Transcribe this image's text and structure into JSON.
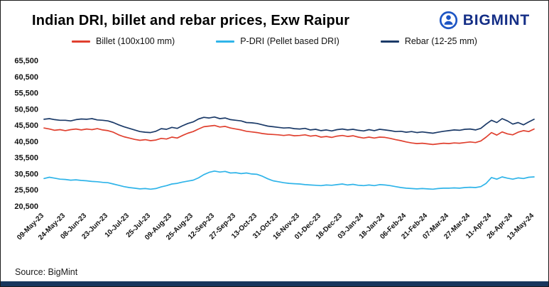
{
  "header": {
    "title": "Indian DRI, billet and rebar prices, Exw Raipur",
    "brand": "BIGMINT"
  },
  "footer": {
    "source": "Source: BigMint"
  },
  "chart_data": {
    "type": "line",
    "title": "Indian DRI, billet and rebar prices, Exw Raipur",
    "xlabel": "",
    "ylabel": "",
    "ylim": [
      20500,
      65500
    ],
    "grid": false,
    "legend_position": "top-center",
    "y_ticks": [
      20500,
      25500,
      30500,
      35500,
      40500,
      45500,
      50500,
      55500,
      60500,
      65500
    ],
    "x_tick_labels": [
      "09-May-23",
      "24-May-23",
      "08-Jun-23",
      "23-Jun-23",
      "10-Jul-23",
      "25-Jul-23",
      "09-Aug-23",
      "25-Aug-23",
      "12-Sep-23",
      "27-Sep-23",
      "13-Oct-23",
      "31-Oct-23",
      "16-Nov-23",
      "01-Dec-23",
      "18-Dec-23",
      "03-Jan-24",
      "18-Jan-24",
      "06-Feb-24",
      "21-Feb-24",
      "07-Mar-24",
      "27-Mar-24",
      "11-Apr-24",
      "26-Apr-24",
      "13-May-24"
    ],
    "points_per_label": 4,
    "series": [
      {
        "id": "billet",
        "name": "Billet (100x100 mm)",
        "color": "#e0402f",
        "values": [
          44600,
          44300,
          43900,
          44100,
          43800,
          44100,
          44300,
          44000,
          44300,
          44100,
          44400,
          44000,
          43800,
          43300,
          42500,
          41900,
          41500,
          41100,
          40800,
          41000,
          40700,
          40900,
          41400,
          41200,
          41800,
          41500,
          42300,
          43000,
          43500,
          44300,
          45000,
          45200,
          45400,
          44900,
          45100,
          44600,
          44300,
          44000,
          43600,
          43400,
          43200,
          42900,
          42700,
          42600,
          42500,
          42300,
          42500,
          42200,
          42300,
          42500,
          42100,
          42300,
          41800,
          42000,
          41700,
          42100,
          42300,
          42000,
          42200,
          41800,
          41500,
          41800,
          41500,
          41800,
          41700,
          41400,
          41000,
          40700,
          40300,
          40000,
          39800,
          39900,
          39700,
          39500,
          39700,
          39900,
          39800,
          40000,
          39900,
          40100,
          40300,
          40100,
          40600,
          41800,
          43200,
          42400,
          43400,
          42800,
          42500,
          43300,
          43800,
          43500,
          44300
        ]
      },
      {
        "id": "pdri",
        "name": "P-DRI (Pellet based DRI)",
        "color": "#2fb4e9",
        "values": [
          29000,
          29400,
          29100,
          28800,
          28700,
          28500,
          28600,
          28400,
          28300,
          28100,
          28000,
          27800,
          27700,
          27300,
          26900,
          26500,
          26200,
          26000,
          25800,
          25900,
          25700,
          25900,
          26400,
          26800,
          27300,
          27500,
          27900,
          28200,
          28500,
          29200,
          30200,
          30900,
          31300,
          31000,
          31200,
          30700,
          30800,
          30500,
          30700,
          30400,
          30300,
          29700,
          28900,
          28300,
          28000,
          27700,
          27500,
          27400,
          27300,
          27100,
          27000,
          26900,
          26800,
          27000,
          26900,
          27100,
          27300,
          27000,
          27200,
          26900,
          26800,
          27000,
          26800,
          27100,
          27000,
          26800,
          26500,
          26200,
          26000,
          25900,
          25800,
          25900,
          25800,
          25700,
          25900,
          26000,
          26000,
          26100,
          26000,
          26200,
          26300,
          26200,
          26500,
          27500,
          29300,
          28800,
          29500,
          29100,
          28800,
          29200,
          29000,
          29400,
          29500
        ]
      },
      {
        "id": "rebar",
        "name": "Rebar (12-25 mm)",
        "color": "#1b3a68",
        "values": [
          47300,
          47500,
          47200,
          47000,
          47000,
          46800,
          47200,
          47400,
          47300,
          47500,
          47100,
          47000,
          46800,
          46300,
          45600,
          45000,
          44500,
          44000,
          43500,
          43300,
          43200,
          43600,
          44400,
          44200,
          44800,
          44500,
          45300,
          46000,
          46500,
          47400,
          47900,
          47700,
          48000,
          47500,
          47700,
          47200,
          47000,
          46800,
          46300,
          46200,
          46000,
          45600,
          45200,
          45000,
          44800,
          44600,
          44700,
          44400,
          44300,
          44500,
          44000,
          44200,
          43800,
          44000,
          43700,
          44100,
          44300,
          44000,
          44200,
          43900,
          43700,
          44100,
          43800,
          44200,
          44000,
          43800,
          43500,
          43600,
          43300,
          43500,
          43200,
          43400,
          43200,
          43000,
          43300,
          43600,
          43800,
          44000,
          43900,
          44200,
          44300,
          44000,
          44500,
          45800,
          47000,
          46300,
          47500,
          46800,
          45800,
          46300,
          45600,
          46500,
          47300
        ]
      }
    ]
  }
}
